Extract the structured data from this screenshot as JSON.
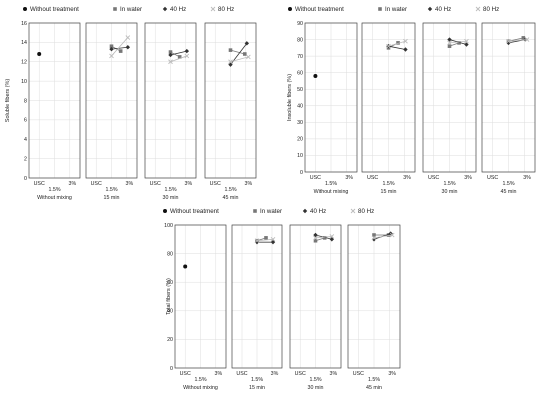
{
  "legend": {
    "entries": [
      {
        "name": "Without treatment",
        "marker": "circle",
        "color": "#111111"
      },
      {
        "name": "In water",
        "marker": "square",
        "color": "#777777"
      },
      {
        "name": "40 Hz",
        "marker": "diamond",
        "color": "#333333"
      },
      {
        "name": "80 Hz",
        "marker": "cross",
        "color": "#bbbbbb"
      }
    ]
  },
  "x_labels": {
    "tick_left": "USC",
    "tick_right": "3%",
    "concentration": "1.5%"
  },
  "chart_data": [
    {
      "type": "scatter",
      "ylabel": "Soluble fibers (%)",
      "ylim": [
        0,
        16
      ],
      "yticks": [
        0,
        2,
        4,
        6,
        8,
        10,
        12,
        14,
        16
      ],
      "grid": true,
      "legend_position": "top",
      "panels": [
        {
          "name": "Without mixing",
          "series": {
            "Without treatment": [
              [
                0.2,
                12.8
              ]
            ]
          }
        },
        {
          "name": "15 min",
          "series": {
            "In water": [
              [
                0.5,
                13.6
              ],
              [
                0.68,
                13.1
              ]
            ],
            "40 Hz": [
              [
                0.5,
                13.3
              ],
              [
                0.82,
                13.5
              ]
            ],
            "80 Hz": [
              [
                0.5,
                12.6
              ],
              [
                0.82,
                14.5
              ]
            ]
          }
        },
        {
          "name": "30 min",
          "series": {
            "In water": [
              [
                0.5,
                13.0
              ],
              [
                0.68,
                12.5
              ]
            ],
            "40 Hz": [
              [
                0.5,
                12.7
              ],
              [
                0.82,
                13.1
              ]
            ],
            "80 Hz": [
              [
                0.5,
                12.0
              ],
              [
                0.82,
                12.6
              ]
            ]
          }
        },
        {
          "name": "45 min",
          "series": {
            "In water": [
              [
                0.5,
                13.2
              ],
              [
                0.78,
                12.8
              ]
            ],
            "40 Hz": [
              [
                0.5,
                11.7
              ],
              [
                0.82,
                13.9
              ]
            ],
            "80 Hz": [
              [
                0.5,
                12.0
              ],
              [
                0.85,
                12.5
              ]
            ]
          }
        }
      ]
    },
    {
      "type": "scatter",
      "ylabel": "Insoluble fibers (%)",
      "ylim": [
        0,
        90
      ],
      "yticks": [
        0,
        10,
        20,
        30,
        40,
        50,
        60,
        70,
        80,
        90
      ],
      "grid": true,
      "legend_position": "top",
      "panels": [
        {
          "name": "Without mixing",
          "series": {
            "Without treatment": [
              [
                0.2,
                58
              ]
            ]
          }
        },
        {
          "name": "15 min",
          "series": {
            "In water": [
              [
                0.5,
                75
              ],
              [
                0.68,
                78
              ]
            ],
            "40 Hz": [
              [
                0.5,
                76
              ],
              [
                0.82,
                74
              ]
            ],
            "80 Hz": [
              [
                0.5,
                76
              ],
              [
                0.82,
                79
              ]
            ]
          }
        },
        {
          "name": "30 min",
          "series": {
            "In water": [
              [
                0.5,
                76
              ],
              [
                0.68,
                78
              ]
            ],
            "40 Hz": [
              [
                0.5,
                80
              ],
              [
                0.82,
                77
              ]
            ],
            "80 Hz": [
              [
                0.5,
                78
              ],
              [
                0.82,
                79
              ]
            ]
          }
        },
        {
          "name": "45 min",
          "series": {
            "In water": [
              [
                0.5,
                79
              ],
              [
                0.78,
                81
              ]
            ],
            "40 Hz": [
              [
                0.5,
                78
              ],
              [
                0.82,
                80
              ]
            ],
            "80 Hz": [
              [
                0.5,
                79
              ],
              [
                0.85,
                80
              ]
            ]
          }
        }
      ]
    },
    {
      "type": "scatter",
      "ylabel": "Total fibers (%)",
      "ylim": [
        0,
        100
      ],
      "yticks": [
        0,
        20,
        40,
        60,
        80,
        100
      ],
      "grid": true,
      "legend_position": "top",
      "panels": [
        {
          "name": "Without mixing",
          "series": {
            "Without treatment": [
              [
                0.2,
                71
              ]
            ]
          }
        },
        {
          "name": "15 min",
          "series": {
            "In water": [
              [
                0.5,
                89
              ],
              [
                0.68,
                91
              ]
            ],
            "40 Hz": [
              [
                0.5,
                88
              ],
              [
                0.82,
                88
              ]
            ],
            "80 Hz": [
              [
                0.5,
                89
              ],
              [
                0.82,
                90
              ]
            ]
          }
        },
        {
          "name": "30 min",
          "series": {
            "In water": [
              [
                0.5,
                89
              ],
              [
                0.68,
                91
              ]
            ],
            "40 Hz": [
              [
                0.5,
                93
              ],
              [
                0.82,
                90
              ]
            ],
            "80 Hz": [
              [
                0.5,
                91
              ],
              [
                0.82,
                92
              ]
            ]
          }
        },
        {
          "name": "45 min",
          "series": {
            "In water": [
              [
                0.5,
                93
              ],
              [
                0.78,
                93
              ]
            ],
            "40 Hz": [
              [
                0.5,
                90
              ],
              [
                0.82,
                94
              ]
            ],
            "80 Hz": [
              [
                0.5,
                91
              ],
              [
                0.85,
                93
              ]
            ]
          }
        }
      ]
    }
  ]
}
